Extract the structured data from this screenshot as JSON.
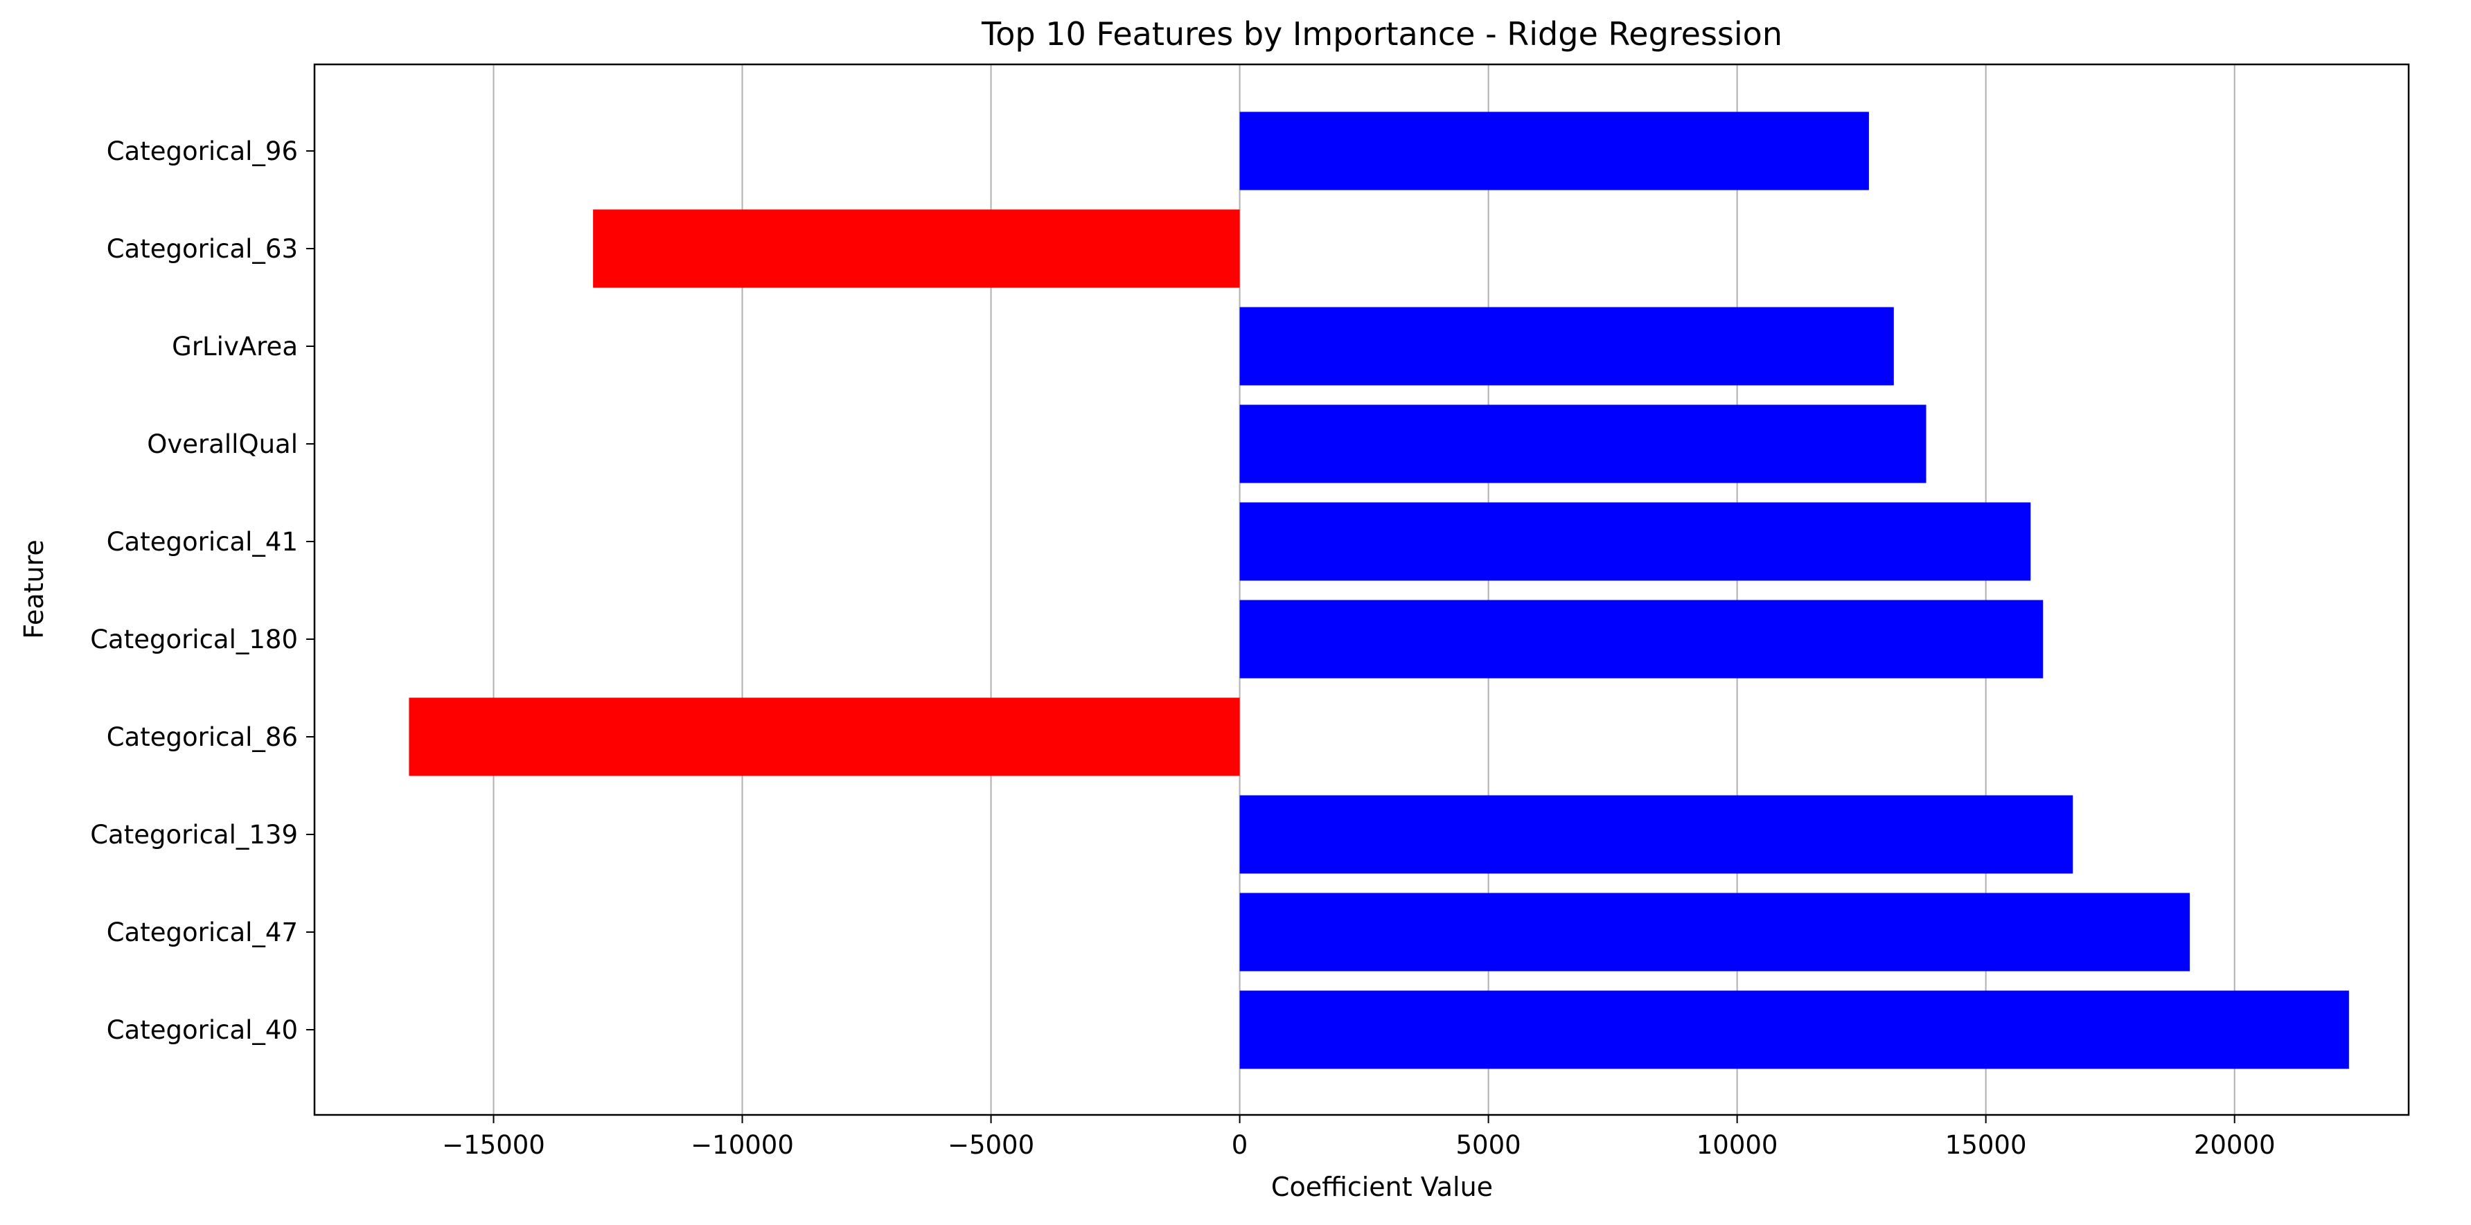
{
  "chart_data": {
    "type": "bar",
    "orientation": "horizontal",
    "title": "Top 10 Features by Importance - Ridge Regression",
    "xlabel": "Coefficient Value",
    "ylabel": "Feature",
    "categories": [
      "Categorical_96",
      "Categorical_63",
      "GrLivArea",
      "OverallQual",
      "Categorical_41",
      "Categorical_180",
      "Categorical_86",
      "Categorical_139",
      "Categorical_47",
      "Categorical_40"
    ],
    "values": [
      12650,
      -13000,
      13150,
      13800,
      15900,
      16150,
      -16700,
      16750,
      19100,
      22300
    ],
    "xlim": [
      -18600,
      23500
    ],
    "xticks": [
      -15000,
      -10000,
      -5000,
      0,
      5000,
      10000,
      15000,
      20000
    ],
    "xtick_labels": [
      "−15000",
      "−10000",
      "−5000",
      "0",
      "5000",
      "10000",
      "15000",
      "20000"
    ],
    "grid": "vertical",
    "colors": {
      "positive": "#0000ff",
      "negative": "#ff0000",
      "grid": "#b0b0b0",
      "axes": "#000000"
    }
  }
}
